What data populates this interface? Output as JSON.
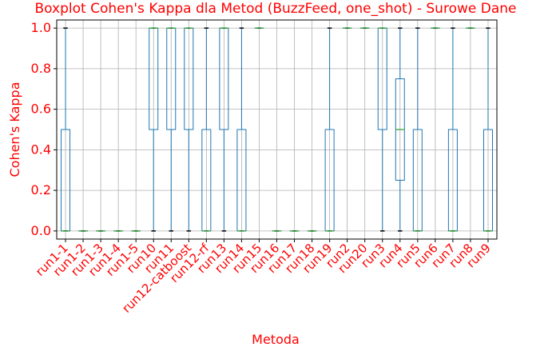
{
  "chart_data": {
    "type": "boxplot",
    "title": "Boxplot Cohen's Kappa dla Metod (BuzzFeed, one_shot) - Surowe Dane",
    "xlabel": "Metoda",
    "ylabel": "Cohen's Kappa",
    "ylim": [
      -0.04,
      1.04
    ],
    "yticks": [
      "0.0",
      "0.2",
      "0.4",
      "0.6",
      "0.8",
      "1.0"
    ],
    "grid": true,
    "colors": {
      "text": "#ff0000",
      "box": "#1f77b4",
      "median": "#2ca02c",
      "grid": "#b0b0b0",
      "axis": "#000000"
    },
    "categories": [
      "run1-1",
      "run1-2",
      "run1-3",
      "run1-4",
      "run1-5",
      "run10",
      "run11",
      "run12-catboost",
      "run12-rf",
      "run13",
      "run14",
      "run15",
      "run16",
      "run17",
      "run18",
      "run19",
      "run2",
      "run20",
      "run3",
      "run4",
      "run5",
      "run6",
      "run7",
      "run8",
      "run9"
    ],
    "boxes": [
      {
        "q1": 0,
        "median": 0,
        "q3": 0.5,
        "whislo": 0,
        "whishi": 1
      },
      {
        "q1": 0,
        "median": 0,
        "q3": 0,
        "whislo": 0,
        "whishi": 0
      },
      {
        "q1": 0,
        "median": 0,
        "q3": 0,
        "whislo": 0,
        "whishi": 0
      },
      {
        "q1": 0,
        "median": 0,
        "q3": 0,
        "whislo": 0,
        "whishi": 0
      },
      {
        "q1": 0,
        "median": 0,
        "q3": 0,
        "whislo": 0,
        "whishi": 0
      },
      {
        "q1": 0.5,
        "median": 1,
        "q3": 1,
        "whislo": 0,
        "whishi": 1
      },
      {
        "q1": 0.5,
        "median": 1,
        "q3": 1,
        "whislo": 0,
        "whishi": 1
      },
      {
        "q1": 0.5,
        "median": 1,
        "q3": 1,
        "whislo": 0,
        "whishi": 1
      },
      {
        "q1": 0,
        "median": 0,
        "q3": 0.5,
        "whislo": 0,
        "whishi": 1
      },
      {
        "q1": 0.5,
        "median": 1,
        "q3": 1,
        "whislo": 0,
        "whishi": 1
      },
      {
        "q1": 0,
        "median": 0,
        "q3": 0.5,
        "whislo": 0,
        "whishi": 1
      },
      {
        "q1": 1,
        "median": 1,
        "q3": 1,
        "whislo": 1,
        "whishi": 1
      },
      {
        "q1": 0,
        "median": 0,
        "q3": 0,
        "whislo": 0,
        "whishi": 0
      },
      {
        "q1": 0,
        "median": 0,
        "q3": 0,
        "whislo": 0,
        "whishi": 0
      },
      {
        "q1": 0,
        "median": 0,
        "q3": 0,
        "whislo": 0,
        "whishi": 0
      },
      {
        "q1": 0,
        "median": 0,
        "q3": 0.5,
        "whislo": 0,
        "whishi": 1
      },
      {
        "q1": 1,
        "median": 1,
        "q3": 1,
        "whislo": 1,
        "whishi": 1
      },
      {
        "q1": 1,
        "median": 1,
        "q3": 1,
        "whislo": 1,
        "whishi": 1
      },
      {
        "q1": 0.5,
        "median": 1,
        "q3": 1,
        "whislo": 0,
        "whishi": 1
      },
      {
        "q1": 0.25,
        "median": 0.5,
        "q3": 0.75,
        "whislo": 0,
        "whishi": 1
      },
      {
        "q1": 0,
        "median": 0,
        "q3": 0.5,
        "whislo": 0,
        "whishi": 1
      },
      {
        "q1": 1,
        "median": 1,
        "q3": 1,
        "whislo": 1,
        "whishi": 1
      },
      {
        "q1": 0,
        "median": 0,
        "q3": 0.5,
        "whislo": 0,
        "whishi": 1
      },
      {
        "q1": 1,
        "median": 1,
        "q3": 1,
        "whislo": 1,
        "whishi": 1
      },
      {
        "q1": 0,
        "median": 0,
        "q3": 0.5,
        "whislo": 0,
        "whishi": 1
      }
    ]
  }
}
